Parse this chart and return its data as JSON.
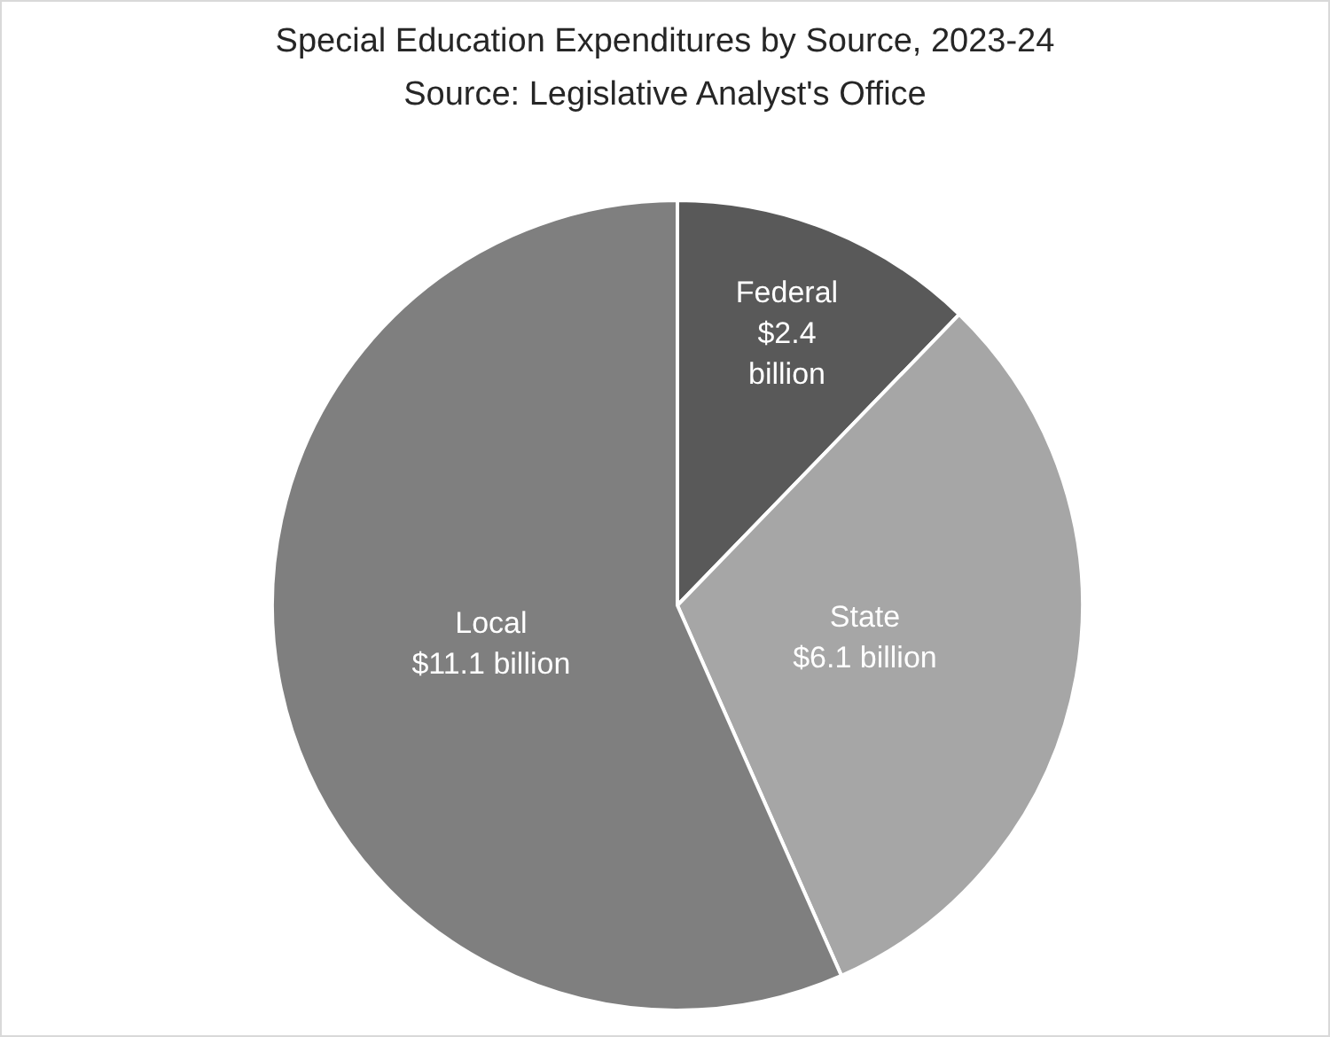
{
  "chart_data": {
    "type": "pie",
    "title": "Special Education Expenditures by Source, 2023-24",
    "subtitle": "Source:  Legislative Analyst's Office",
    "categories": [
      "Federal",
      "State",
      "Local"
    ],
    "values": [
      2.4,
      6.1,
      11.1
    ],
    "value_labels": [
      "$2.4 billion",
      "$6.1 billion",
      "$11.1 billion"
    ],
    "colors": [
      "#595959",
      "#a6a6a6",
      "#7f7f7f"
    ],
    "legend": false
  }
}
